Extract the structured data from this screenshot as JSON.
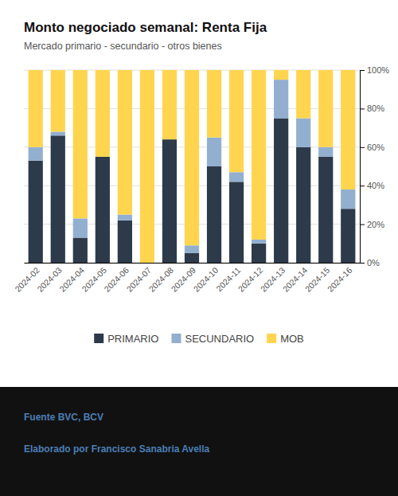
{
  "chart_data": {
    "type": "bar",
    "stacked": true,
    "title": "Monto negociado semanal: Renta Fija",
    "subtitle": "Mercado  primario - secundario  - otros bienes",
    "categories": [
      "2024-02",
      "2024-03",
      "2024-04",
      "2024-05",
      "2024-06",
      "2024-07",
      "2024-08",
      "2024-09",
      "2024-10",
      "2024-11",
      "2024-12",
      "2024-13",
      "2024-14",
      "2024-15",
      "2024-16"
    ],
    "series": [
      {
        "name": "PRIMARIO",
        "color": "#2d3a4a",
        "values": [
          53,
          66,
          13,
          55,
          22,
          0,
          64,
          5,
          50,
          42,
          10,
          75,
          60,
          55,
          28
        ]
      },
      {
        "name": "SECUNDARIO",
        "color": "#92afd0",
        "values": [
          7,
          2,
          10,
          0,
          3,
          0,
          0,
          4,
          15,
          5,
          2,
          20,
          15,
          5,
          10
        ]
      },
      {
        "name": "MOB",
        "color": "#ffd54f",
        "values": [
          40,
          32,
          77,
          45,
          75,
          100,
          36,
          91,
          35,
          53,
          88,
          5,
          25,
          40,
          62
        ]
      }
    ],
    "ylim": [
      0,
      100
    ],
    "yticks": [
      {
        "value": 0,
        "label": "0%"
      },
      {
        "value": 20,
        "label": "20%"
      },
      {
        "value": 40,
        "label": "40%"
      },
      {
        "value": 60,
        "label": "60%"
      },
      {
        "value": 80,
        "label": "80%"
      },
      {
        "value": 100,
        "label": "100%"
      }
    ],
    "grid": true,
    "legend": "bottom",
    "annotations": [
      "Fuente BVC, BCV",
      "Elaborado por Francisco Sanabria Avella"
    ]
  }
}
